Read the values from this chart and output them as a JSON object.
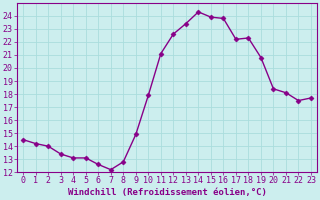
{
  "x": [
    0,
    1,
    2,
    3,
    4,
    5,
    6,
    7,
    8,
    9,
    10,
    11,
    12,
    13,
    14,
    15,
    16,
    17,
    18,
    19,
    20,
    21,
    22,
    23
  ],
  "y": [
    14.5,
    14.2,
    14.0,
    13.4,
    13.1,
    13.1,
    12.6,
    12.2,
    12.8,
    14.9,
    17.9,
    21.1,
    22.6,
    23.4,
    24.3,
    23.9,
    23.8,
    22.2,
    22.3,
    20.8,
    18.4,
    18.1,
    17.5,
    17.7
  ],
  "line_color": "#880088",
  "marker": "D",
  "markersize": 2.5,
  "linewidth": 1.0,
  "bg_color": "#cceeee",
  "grid_color": "#aadddd",
  "xlabel": "Windchill (Refroidissement éolien,°C)",
  "xlabel_fontsize": 6.5,
  "tick_fontsize": 6.0,
  "xlim": [
    -0.5,
    23.5
  ],
  "ylim": [
    12,
    25
  ],
  "yticks": [
    12,
    13,
    14,
    15,
    16,
    17,
    18,
    19,
    20,
    21,
    22,
    23,
    24
  ],
  "xticks": [
    0,
    1,
    2,
    3,
    4,
    5,
    6,
    7,
    8,
    9,
    10,
    11,
    12,
    13,
    14,
    15,
    16,
    17,
    18,
    19,
    20,
    21,
    22,
    23
  ],
  "tick_color": "#880088",
  "label_color": "#880088",
  "spine_color": "#880088"
}
